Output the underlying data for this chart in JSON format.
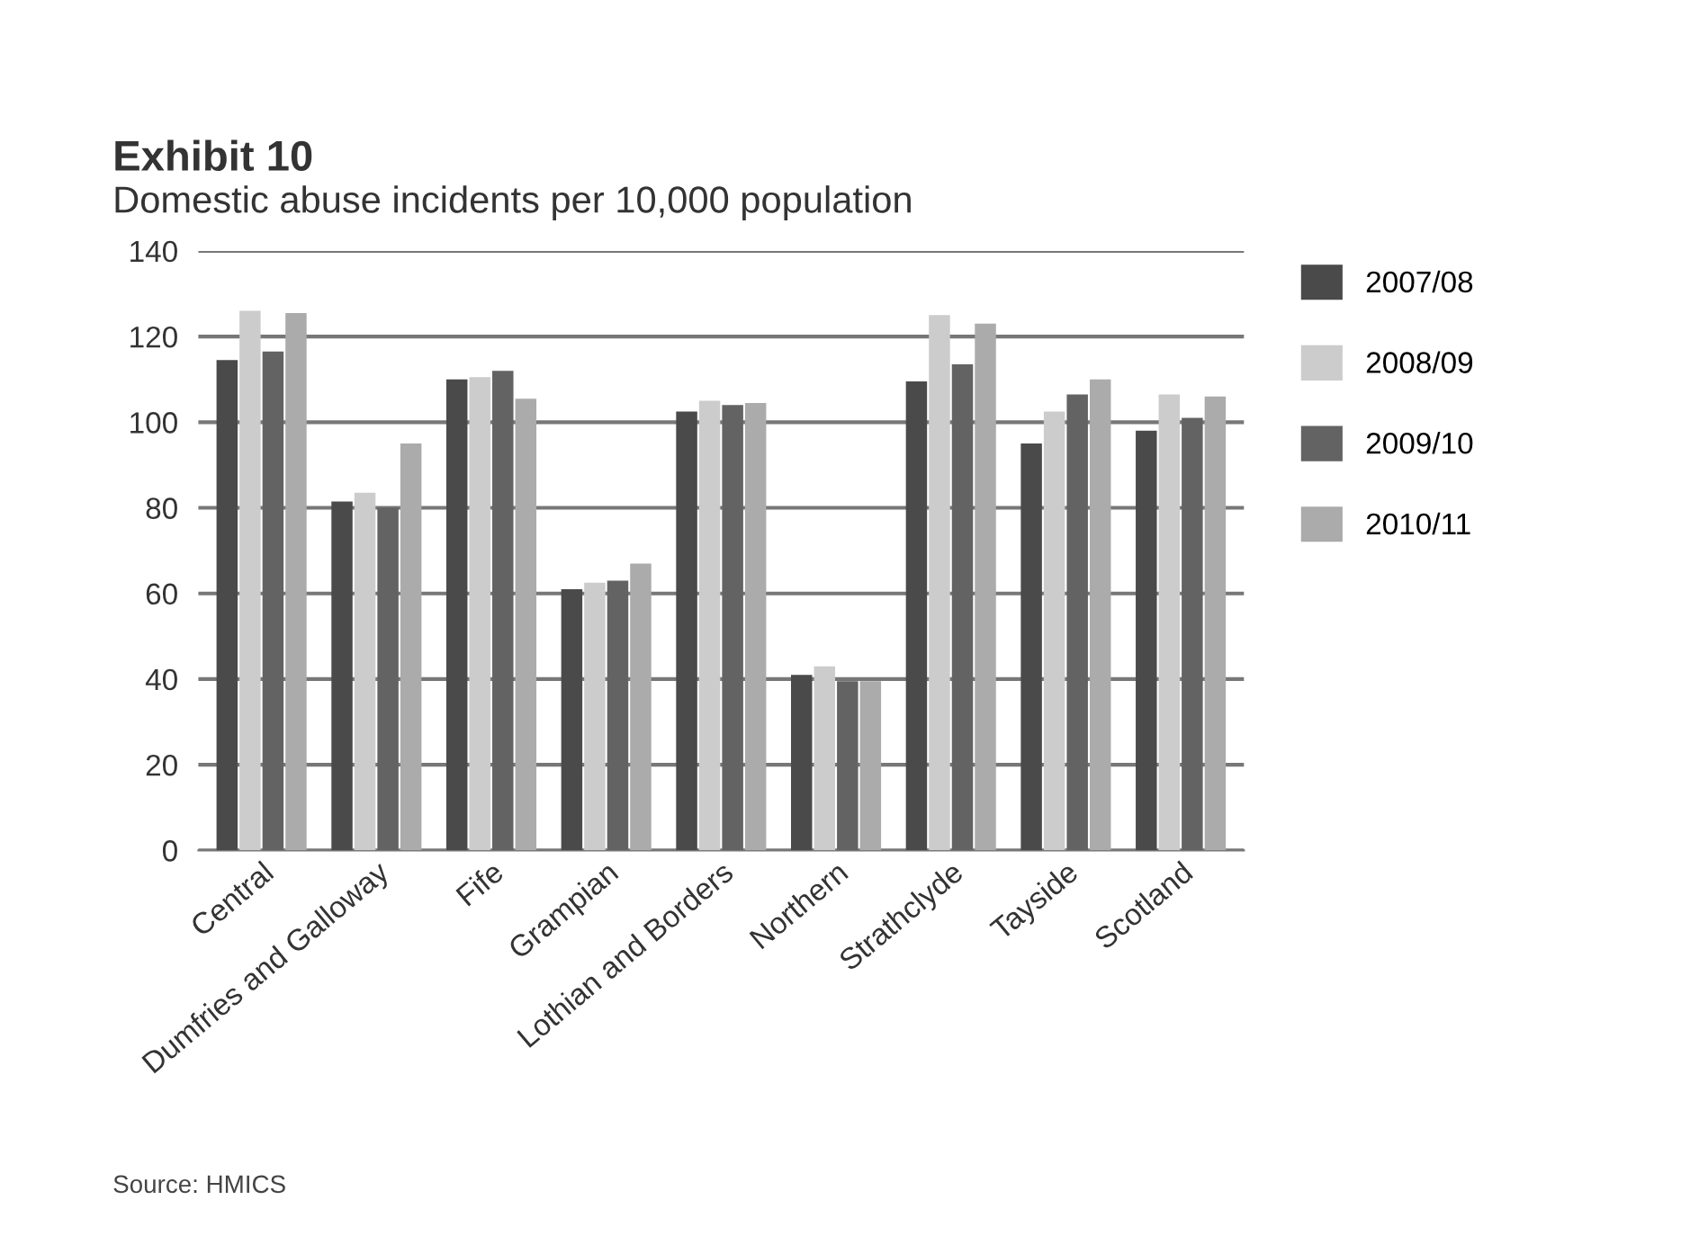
{
  "chart_data": {
    "type": "bar",
    "title": "Exhibit 10",
    "subtitle": "Domestic abuse incidents per 10,000 population",
    "categories": [
      "Central",
      "Dumfries and Galloway",
      "Fife",
      "Grampian",
      "Lothian and Borders",
      "Northern",
      "Strathclyde",
      "Tayside",
      "Scotland"
    ],
    "series": [
      {
        "name": "2007/08",
        "color": "#4a4a4a",
        "values": [
          114.5,
          81.5,
          110,
          61,
          102.5,
          41,
          109.5,
          95,
          98
        ]
      },
      {
        "name": "2008/09",
        "color": "#cccccc",
        "values": [
          126,
          83.5,
          110.5,
          62.5,
          105,
          43,
          125,
          102.5,
          106.5
        ]
      },
      {
        "name": "2009/10",
        "color": "#636363",
        "values": [
          116.5,
          80,
          112,
          63,
          104,
          39.5,
          113.5,
          106.5,
          101
        ]
      },
      {
        "name": "2010/11",
        "color": "#ababab",
        "values": [
          125.5,
          95,
          105.5,
          67,
          104.5,
          39.5,
          123,
          110,
          106
        ]
      }
    ],
    "ylim": [
      0,
      140
    ],
    "yticks": [
      0,
      20,
      40,
      60,
      80,
      100,
      120,
      140
    ],
    "grid": "y",
    "legend": "right",
    "annotations": [
      "Source: HMICS"
    ]
  }
}
